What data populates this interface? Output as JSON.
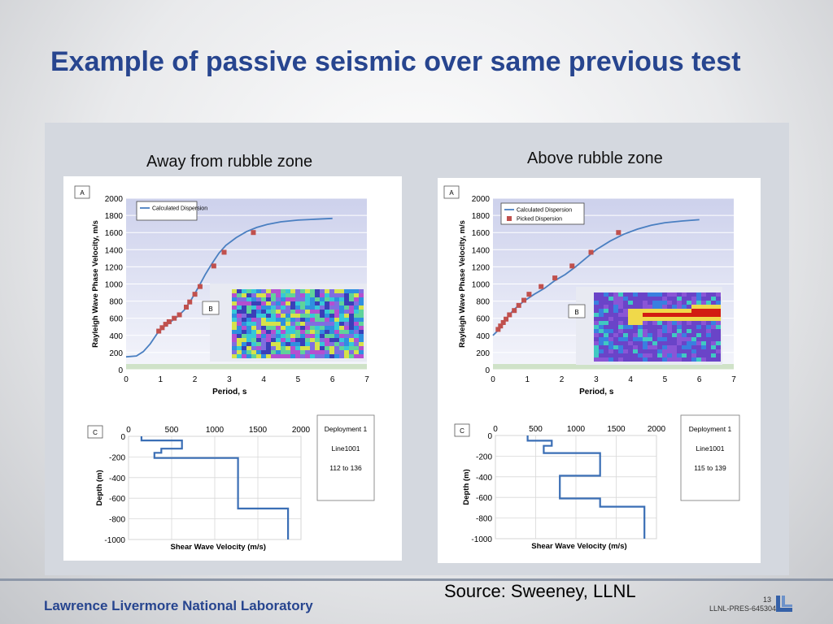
{
  "slide": {
    "title": "Example of passive seismic over same previous test",
    "source": "Source: Sweeney, LLNL",
    "footer_lab": "Lawrence Livermore National Laboratory",
    "page_number": "13",
    "doc_code": "LLNL-PRES-645304"
  },
  "colors": {
    "title": "#27458f",
    "curve": "#4a7fc1",
    "picked": "#c0504d",
    "profile": "#3a6eb5"
  },
  "chart_data": [
    {
      "type": "line",
      "title": "Away from rubble zone",
      "panel_label": "A",
      "xlabel": "Period, s",
      "ylabel": "Rayleigh Wave Phase Velocity, m/s",
      "xlim": [
        0,
        7
      ],
      "ylim": [
        0,
        2000
      ],
      "x_ticks": [
        "0",
        "1",
        "2",
        "3",
        "4",
        "5",
        "6",
        "7"
      ],
      "y_ticks": [
        "0",
        "200",
        "400",
        "600",
        "800",
        "1000",
        "1200",
        "1400",
        "1600",
        "1800",
        "2000"
      ],
      "legend": [
        "Calculated Dispersion"
      ],
      "legend_position": "top-left",
      "series": [
        {
          "name": "Calculated Dispersion",
          "x": [
            0,
            0.3,
            0.5,
            0.7,
            0.9,
            1.1,
            1.3,
            1.5,
            1.7,
            1.9,
            2.1,
            2.3,
            2.5,
            2.7,
            2.9,
            3.2,
            3.5,
            3.8,
            4.1,
            4.5,
            5.0,
            5.5,
            6.0
          ],
          "y": [
            150,
            160,
            210,
            300,
            420,
            500,
            560,
            620,
            700,
            820,
            960,
            1110,
            1240,
            1360,
            1450,
            1540,
            1610,
            1660,
            1695,
            1725,
            1745,
            1755,
            1765
          ]
        },
        {
          "name": "Picked Dispersion",
          "x": [
            0.95,
            1.05,
            1.15,
            1.25,
            1.4,
            1.55,
            1.75,
            1.85,
            2.0,
            2.15,
            2.55,
            2.85,
            3.7
          ],
          "y": [
            450,
            490,
            530,
            560,
            600,
            640,
            730,
            790,
            880,
            970,
            1210,
            1370,
            1600
          ]
        }
      ],
      "inset": {
        "label": "B"
      },
      "profile": {
        "panel_label": "C",
        "xlabel": "Shear Wave Velocity (m/s)",
        "ylabel": "Depth (m)",
        "xlim": [
          0,
          2000
        ],
        "ylim": [
          0,
          -1000
        ],
        "x_ticks": [
          "0",
          "500",
          "1000",
          "1500",
          "2000"
        ],
        "y_ticks": [
          "0",
          "-200",
          "-400",
          "-600",
          "-800",
          "-1000"
        ],
        "velocity_steps": [
          {
            "top": 0,
            "bottom": -40,
            "vs": 150
          },
          {
            "top": -40,
            "bottom": -120,
            "vs": 620
          },
          {
            "top": -120,
            "bottom": -160,
            "vs": 380
          },
          {
            "top": -160,
            "bottom": -210,
            "vs": 300
          },
          {
            "top": -210,
            "bottom": -700,
            "vs": 1270
          },
          {
            "top": -700,
            "bottom": -1000,
            "vs": 1850
          }
        ],
        "note": [
          "Deployment 1",
          "Line1001",
          "112 to 136"
        ]
      }
    },
    {
      "type": "line",
      "title": "Above rubble zone",
      "panel_label": "A",
      "xlabel": "Period, s",
      "ylabel": "Rayleigh Wave Phase Velocity, m/s",
      "xlim": [
        0,
        7
      ],
      "ylim": [
        0,
        2000
      ],
      "x_ticks": [
        "0",
        "1",
        "2",
        "3",
        "4",
        "5",
        "6",
        "7"
      ],
      "y_ticks": [
        "0",
        "200",
        "400",
        "600",
        "800",
        "1000",
        "1200",
        "1400",
        "1600",
        "1800",
        "2000"
      ],
      "legend": [
        "Calculated Dispersion",
        "Picked Dispersion"
      ],
      "legend_position": "top-left",
      "series": [
        {
          "name": "Calculated Dispersion",
          "x": [
            0,
            0.2,
            0.4,
            0.6,
            0.9,
            1.2,
            1.5,
            1.8,
            2.1,
            2.4,
            2.7,
            3.0,
            3.4,
            3.8,
            4.2,
            4.6,
            5.0,
            5.5,
            6.0
          ],
          "y": [
            400,
            480,
            600,
            700,
            800,
            880,
            950,
            1040,
            1110,
            1200,
            1300,
            1400,
            1500,
            1580,
            1640,
            1685,
            1715,
            1735,
            1750
          ]
        },
        {
          "name": "Picked Dispersion",
          "x": [
            0.15,
            0.22,
            0.3,
            0.38,
            0.48,
            0.62,
            0.75,
            0.9,
            1.05,
            1.4,
            1.8,
            2.3,
            2.85,
            3.65
          ],
          "y": [
            470,
            510,
            550,
            590,
            640,
            690,
            750,
            810,
            880,
            970,
            1070,
            1210,
            1370,
            1600
          ]
        }
      ],
      "inset": {
        "label": "B"
      },
      "profile": {
        "panel_label": "C",
        "xlabel": "Shear Wave Velocity (m/s)",
        "ylabel": "Depth (m)",
        "xlim": [
          0,
          2000
        ],
        "ylim": [
          0,
          -1000
        ],
        "x_ticks": [
          "0",
          "500",
          "1000",
          "1500",
          "2000"
        ],
        "y_ticks": [
          "0",
          "-200",
          "-400",
          "-600",
          "-800",
          "-1000"
        ],
        "velocity_steps": [
          {
            "top": 0,
            "bottom": -50,
            "vs": 400
          },
          {
            "top": -50,
            "bottom": -100,
            "vs": 700
          },
          {
            "top": -100,
            "bottom": -170,
            "vs": 600
          },
          {
            "top": -170,
            "bottom": -390,
            "vs": 1300
          },
          {
            "top": -390,
            "bottom": -610,
            "vs": 800
          },
          {
            "top": -610,
            "bottom": -690,
            "vs": 1300
          },
          {
            "top": -690,
            "bottom": -1000,
            "vs": 1850
          }
        ],
        "note": [
          "Deployment 1",
          "Line1001",
          "115 to 139"
        ]
      }
    }
  ]
}
